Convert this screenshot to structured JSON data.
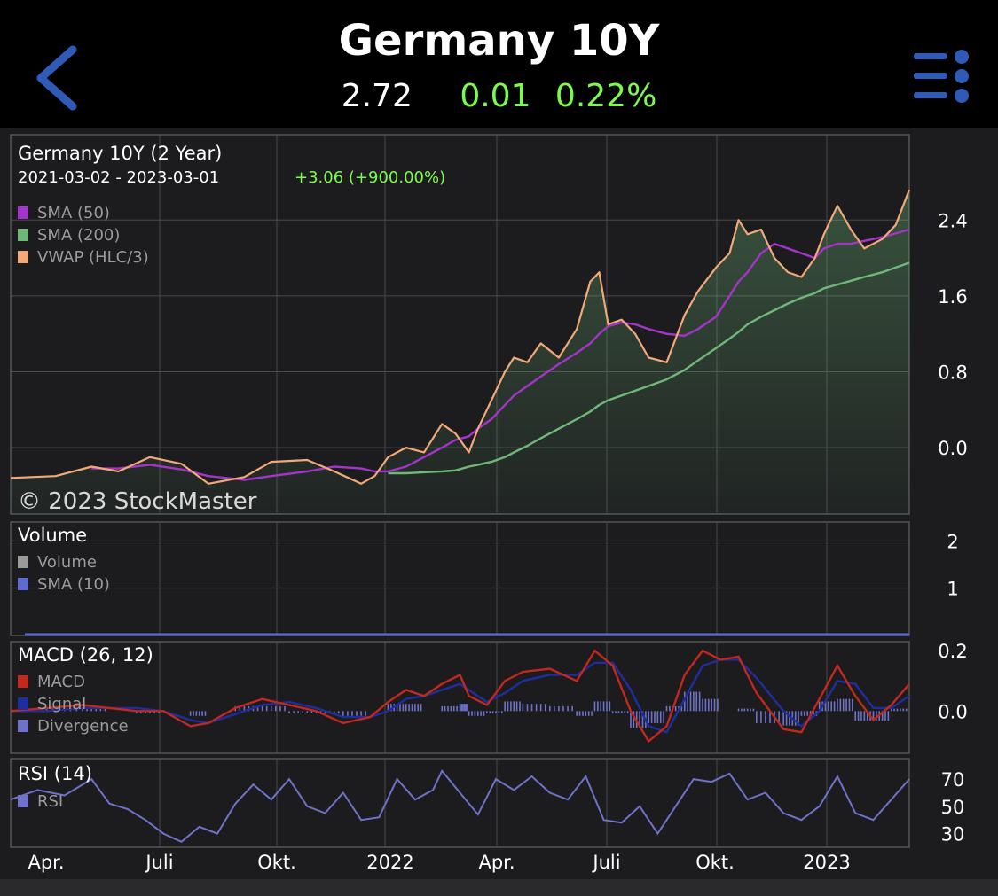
{
  "header": {
    "title": "Germany 10Y",
    "last": "2.72",
    "change": "0.01",
    "change_pct": "0.22%",
    "back_icon": "chevron-left-icon",
    "menu_icon": "list-menu-icon",
    "accent_color": "#2F5BB7",
    "positive_color": "#7CFC4A"
  },
  "chart_data": [
    {
      "type": "line",
      "panel": "price",
      "title": "Germany 10Y (2 Year)",
      "date_range": "2021-03-02 - 2023-03-01",
      "period_change": "+3.06 (+900.00%)",
      "watermark": "© 2023 StockMaster",
      "x_tick_labels": [
        "Apr.",
        "Juli",
        "Okt.",
        "2022",
        "Apr.",
        "Juli",
        "Okt.",
        "2023"
      ],
      "y_ticks": [
        0.0,
        0.8,
        1.6,
        2.4
      ],
      "y_tick_labels": [
        "0.0",
        "0.8",
        "1.6",
        "2.4"
      ],
      "ylim": [
        -0.7,
        3.3
      ],
      "x": [
        0,
        0.05,
        0.09,
        0.12,
        0.155,
        0.19,
        0.22,
        0.26,
        0.29,
        0.33,
        0.36,
        0.39,
        0.405,
        0.42,
        0.44,
        0.46,
        0.48,
        0.495,
        0.51,
        0.52,
        0.535,
        0.55,
        0.56,
        0.575,
        0.59,
        0.61,
        0.63,
        0.645,
        0.655,
        0.665,
        0.68,
        0.695,
        0.71,
        0.73,
        0.75,
        0.765,
        0.785,
        0.8,
        0.81,
        0.82,
        0.835,
        0.85,
        0.865,
        0.88,
        0.895,
        0.905,
        0.92,
        0.935,
        0.95,
        0.97,
        0.985,
        1.0
      ],
      "series": [
        {
          "name": "VWAP (HLC/3)",
          "color": "#F2A97A",
          "values": [
            -0.32,
            -0.3,
            -0.2,
            -0.25,
            -0.1,
            -0.17,
            -0.38,
            -0.31,
            -0.15,
            -0.13,
            -0.25,
            -0.38,
            -0.3,
            -0.1,
            0.0,
            -0.05,
            0.25,
            0.15,
            -0.05,
            0.2,
            0.5,
            0.8,
            0.95,
            0.9,
            1.1,
            0.95,
            1.25,
            1.75,
            1.85,
            1.3,
            1.35,
            1.2,
            0.95,
            0.9,
            1.4,
            1.65,
            1.9,
            2.05,
            2.4,
            2.25,
            2.3,
            2.0,
            1.85,
            1.8,
            2.0,
            2.25,
            2.55,
            2.3,
            2.1,
            2.2,
            2.35,
            2.72
          ]
        },
        {
          "name": "SMA (50)",
          "color": "#A335C9",
          "values": [
            null,
            null,
            -0.22,
            -0.22,
            -0.18,
            -0.23,
            -0.3,
            -0.34,
            -0.3,
            -0.25,
            -0.2,
            -0.22,
            -0.25,
            -0.25,
            -0.2,
            -0.1,
            0.0,
            0.08,
            0.12,
            0.2,
            0.3,
            0.45,
            0.55,
            0.65,
            0.75,
            0.88,
            1.0,
            1.1,
            1.2,
            1.28,
            1.32,
            1.3,
            1.25,
            1.2,
            1.18,
            1.25,
            1.38,
            1.6,
            1.75,
            1.85,
            2.05,
            2.15,
            2.1,
            2.05,
            2.0,
            2.1,
            2.15,
            2.15,
            2.18,
            2.22,
            2.26,
            2.3
          ]
        },
        {
          "name": "SMA (200)",
          "color": "#6FB87A",
          "values": [
            null,
            null,
            null,
            null,
            null,
            null,
            null,
            null,
            null,
            null,
            null,
            null,
            null,
            -0.27,
            -0.27,
            -0.26,
            -0.25,
            -0.24,
            -0.2,
            -0.18,
            -0.15,
            -0.1,
            -0.05,
            0.02,
            0.1,
            0.2,
            0.3,
            0.38,
            0.45,
            0.5,
            0.55,
            0.6,
            0.65,
            0.72,
            0.82,
            0.92,
            1.05,
            1.15,
            1.22,
            1.3,
            1.38,
            1.45,
            1.52,
            1.58,
            1.63,
            1.68,
            1.72,
            1.76,
            1.8,
            1.85,
            1.9,
            1.95
          ]
        }
      ]
    },
    {
      "type": "bar",
      "panel": "volume",
      "title": "Volume",
      "legend": [
        "Volume",
        "SMA (10)"
      ],
      "legend_colors": [
        "#9A9A9A",
        "#5F6BCF"
      ],
      "y_ticks": [
        1,
        2
      ],
      "y_tick_labels": [
        "1",
        "2"
      ],
      "ylim": [
        0,
        2.4
      ],
      "values": [
        0
      ],
      "sma_values": [
        0
      ]
    },
    {
      "type": "line",
      "panel": "macd",
      "title": "MACD (26, 12)",
      "y_ticks": [
        0.0,
        0.2
      ],
      "y_tick_labels": [
        "0.0",
        "0.2"
      ],
      "ylim": [
        -0.14,
        0.23
      ],
      "x": [
        0,
        0.04,
        0.08,
        0.11,
        0.14,
        0.17,
        0.2,
        0.22,
        0.25,
        0.28,
        0.31,
        0.34,
        0.37,
        0.4,
        0.42,
        0.44,
        0.46,
        0.48,
        0.5,
        0.51,
        0.53,
        0.55,
        0.57,
        0.6,
        0.63,
        0.65,
        0.67,
        0.69,
        0.71,
        0.73,
        0.75,
        0.77,
        0.79,
        0.81,
        0.83,
        0.86,
        0.88,
        0.9,
        0.92,
        0.94,
        0.96,
        0.98,
        1.0
      ],
      "series": [
        {
          "name": "MACD",
          "color": "#C1281E",
          "values": [
            0.0,
            0.01,
            0.02,
            0.01,
            0.0,
            0.0,
            -0.05,
            -0.04,
            0.01,
            0.04,
            0.02,
            0.0,
            -0.04,
            -0.02,
            0.03,
            0.07,
            0.05,
            0.09,
            0.12,
            0.05,
            0.02,
            0.1,
            0.13,
            0.14,
            0.1,
            0.2,
            0.15,
            0.0,
            -0.1,
            -0.05,
            0.12,
            0.2,
            0.17,
            0.18,
            0.06,
            -0.06,
            -0.07,
            0.04,
            0.15,
            0.05,
            -0.03,
            0.02,
            0.09
          ]
        },
        {
          "name": "Signal",
          "color": "#1F2E9E",
          "values": [
            0.0,
            0.0,
            0.01,
            0.01,
            0.01,
            0.0,
            -0.03,
            -0.04,
            -0.01,
            0.02,
            0.03,
            0.01,
            -0.02,
            -0.02,
            0.0,
            0.04,
            0.05,
            0.07,
            0.09,
            0.07,
            0.03,
            0.06,
            0.1,
            0.12,
            0.12,
            0.16,
            0.16,
            0.07,
            -0.05,
            -0.07,
            0.04,
            0.15,
            0.17,
            0.17,
            0.11,
            0.0,
            -0.05,
            0.0,
            0.1,
            0.09,
            0.01,
            0.01,
            0.05
          ]
        }
      ],
      "divergence_name": "Divergence",
      "divergence_color": "#6E72C8"
    },
    {
      "type": "line",
      "panel": "rsi",
      "title": "RSI (14)",
      "y_ticks": [
        30,
        50,
        70
      ],
      "y_tick_labels": [
        "30",
        "50",
        "70"
      ],
      "ylim": [
        20,
        85
      ],
      "x": [
        0,
        0.03,
        0.06,
        0.09,
        0.11,
        0.13,
        0.15,
        0.17,
        0.19,
        0.21,
        0.23,
        0.25,
        0.27,
        0.29,
        0.31,
        0.33,
        0.35,
        0.37,
        0.39,
        0.41,
        0.43,
        0.45,
        0.47,
        0.48,
        0.5,
        0.52,
        0.54,
        0.56,
        0.58,
        0.6,
        0.62,
        0.64,
        0.66,
        0.68,
        0.7,
        0.72,
        0.74,
        0.76,
        0.78,
        0.8,
        0.82,
        0.84,
        0.86,
        0.88,
        0.9,
        0.92,
        0.94,
        0.96,
        0.98,
        1.0
      ],
      "series": [
        {
          "name": "RSI",
          "color": "#6E72C8",
          "values": [
            55,
            62,
            58,
            70,
            52,
            48,
            40,
            30,
            24,
            35,
            30,
            52,
            66,
            55,
            70,
            50,
            45,
            60,
            40,
            42,
            70,
            55,
            62,
            76,
            60,
            44,
            70,
            62,
            72,
            60,
            55,
            72,
            40,
            38,
            50,
            30,
            50,
            70,
            68,
            74,
            55,
            60,
            45,
            40,
            50,
            72,
            45,
            40,
            55,
            70
          ]
        }
      ]
    }
  ]
}
